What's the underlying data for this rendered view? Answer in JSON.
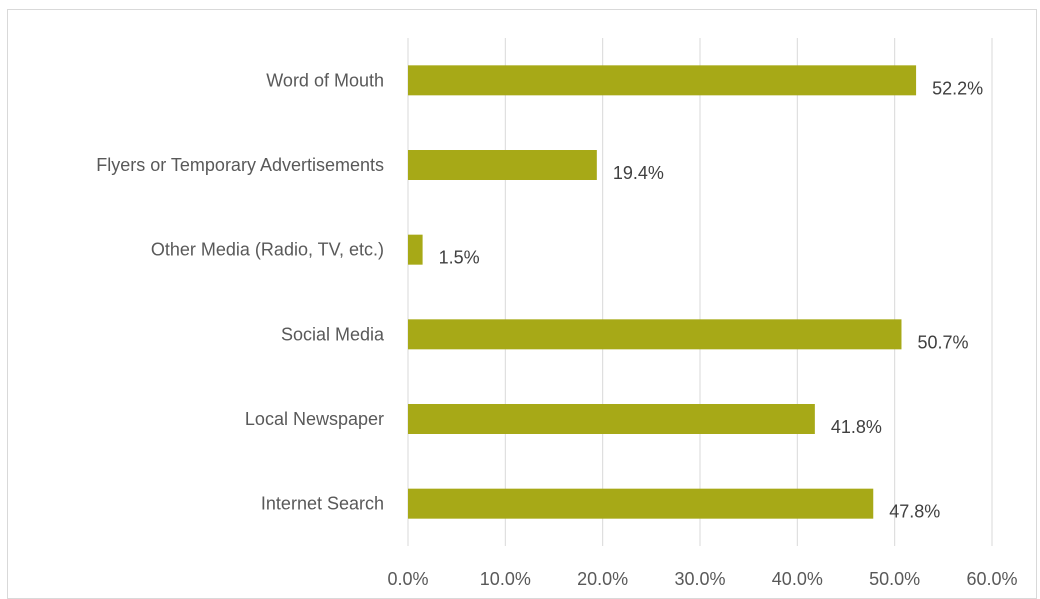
{
  "chart_data": {
    "type": "bar",
    "orientation": "horizontal",
    "categories": [
      "Word of Mouth",
      "Flyers or Temporary Advertisements",
      "Other Media (Radio, TV, etc.)",
      "Social Media",
      "Local Newspaper",
      "Internet Search"
    ],
    "values": [
      52.2,
      19.4,
      1.5,
      50.7,
      41.8,
      47.8
    ],
    "value_labels": [
      "52.2%",
      "19.4%",
      "1.5%",
      "50.7%",
      "41.8%",
      "47.8%"
    ],
    "xlim": [
      0,
      60
    ],
    "x_ticks": [
      0,
      10,
      20,
      30,
      40,
      50,
      60
    ],
    "x_tick_labels": [
      "0.0%",
      "10.0%",
      "20.0%",
      "30.0%",
      "40.0%",
      "50.0%",
      "60.0%"
    ],
    "grid": true,
    "colors": {
      "bar": "#a7a917",
      "grid": "#d9d9d9"
    }
  }
}
